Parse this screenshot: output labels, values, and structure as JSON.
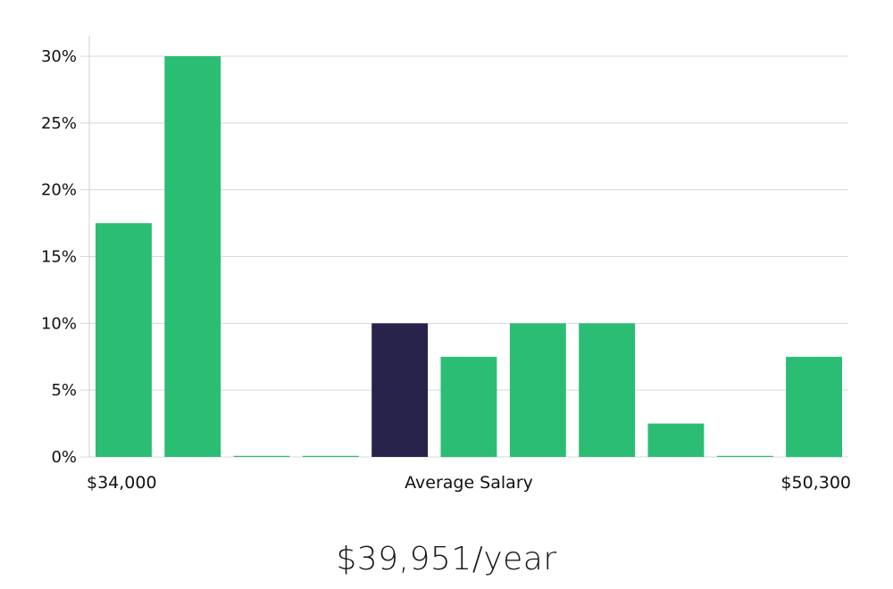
{
  "chart_data": {
    "type": "bar",
    "values": [
      17.5,
      30,
      0,
      0,
      10,
      7.5,
      10,
      10,
      2.5,
      0,
      7.5
    ],
    "highlight_index": 4,
    "ylim": [
      0,
      30
    ],
    "y_ticks": [
      "0%",
      "5%",
      "10%",
      "15%",
      "20%",
      "25%",
      "30%"
    ],
    "x_labels": {
      "left": "$34,000",
      "center": "Average Salary",
      "right": "$50,300"
    },
    "grid": true,
    "colors": {
      "bar": "#2bbd73",
      "highlight": "#28234a",
      "grid": "#d8d8d8",
      "axis": "#d0d0d0"
    }
  },
  "headline": "$39,951/year"
}
